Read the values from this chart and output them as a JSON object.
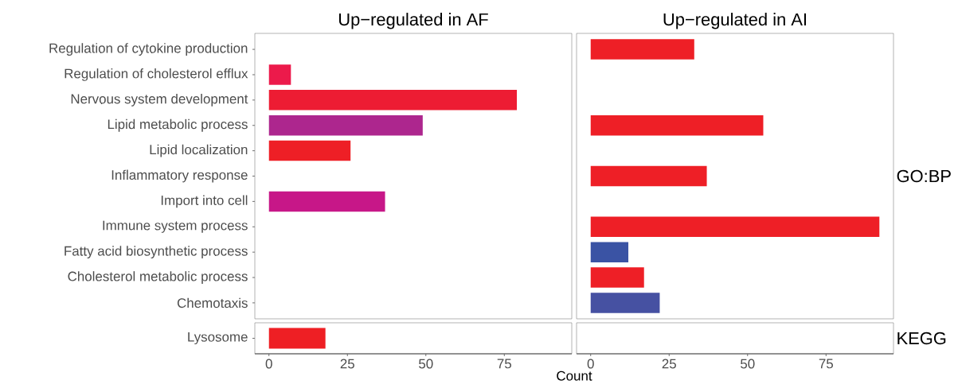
{
  "chart_data": [
    {
      "type": "bar",
      "orientation": "horizontal",
      "title": "Up−regulated in AF",
      "tick_labels": "y",
      "categories": [
        "Regulation of cytokine production",
        "Regulation of cholesterol efflux",
        "Nervous system development",
        "Lipid metabolic process",
        "Lipid localization",
        "Inflammatory response",
        "Import into cell",
        "Immune system process",
        "Fatty acid biosynthetic process",
        "Cholesterol metabolic process",
        "Chemotaxis"
      ],
      "values": [
        null,
        7,
        79,
        49,
        26,
        null,
        37,
        null,
        null,
        null,
        null
      ],
      "colors": [
        null,
        "#ec1a4b",
        "#ed1c33",
        "#ad268e",
        "#ee1f26",
        null,
        "#c71788",
        null,
        null,
        null,
        null
      ],
      "xlim": [
        -4.5,
        96.5
      ]
    },
    {
      "type": "bar",
      "orientation": "horizontal",
      "title": "Up−regulated in AI",
      "y2label": "GO:BP",
      "tick_labels": false,
      "categories": [
        null,
        null,
        null,
        null,
        null,
        null,
        null,
        null,
        null,
        null,
        null
      ],
      "values": [
        33,
        null,
        null,
        55,
        null,
        37,
        null,
        92,
        12,
        17,
        22
      ],
      "colors": [
        "#ee1f26",
        null,
        null,
        "#ee1f26",
        null,
        "#ee1f26",
        null,
        "#ee1f26",
        "#3a53a4",
        "#ee1f26",
        "#4651a2"
      ],
      "xlim": [
        -4.5,
        96.5
      ]
    },
    {
      "type": "bar",
      "orientation": "horizontal",
      "xlabel": "Count",
      "categories": [
        "Lysosome"
      ],
      "values": [
        18
      ],
      "colors": [
        "#ee1f24"
      ],
      "xlim": [
        -4.5,
        96.5
      ],
      "xticks": [
        0,
        25,
        50,
        75
      ]
    },
    {
      "type": "bar",
      "orientation": "horizontal",
      "y2label": "KEGG",
      "tick_labels": "x",
      "categories": [
        null
      ],
      "values": [
        null
      ],
      "colors": [
        null
      ],
      "xlim": [
        -4.5,
        96.5
      ],
      "xticks": [
        0,
        25,
        50,
        75
      ]
    }
  ]
}
